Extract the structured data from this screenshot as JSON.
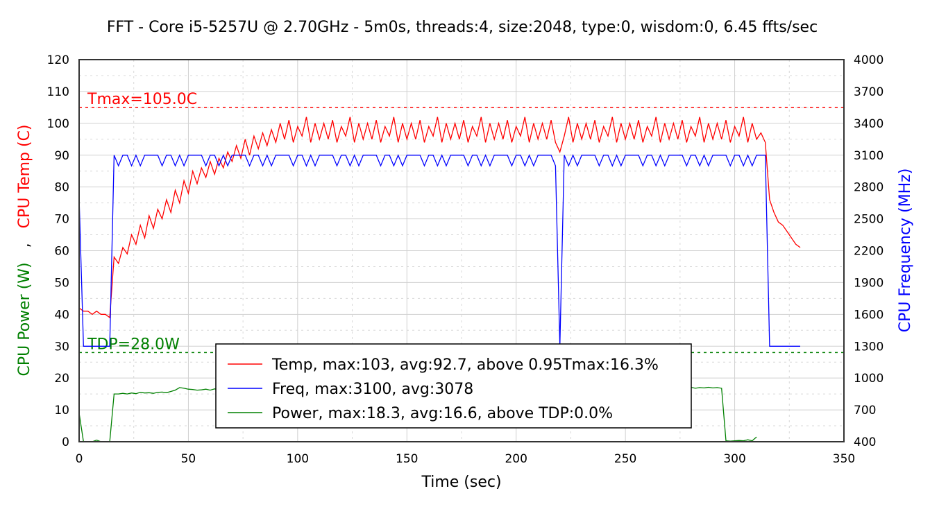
{
  "chart_data": {
    "type": "line",
    "title": "FFT - Core i5-5257U @ 2.70GHz - 5m0s, threads:4, size:2048, type:0, wisdom:0, 6.45 ffts/sec",
    "xlabel": "Time (sec)",
    "ylabel_left_parts": [
      "CPU Power (W)",
      ",",
      "CPU Temp (C)"
    ],
    "ylabel_right": "CPU Frequency (MHz)",
    "xlim": [
      0,
      350
    ],
    "ylim_left": [
      0,
      120
    ],
    "ylim_right": [
      400,
      4000
    ],
    "xticks": [
      0,
      50,
      100,
      150,
      200,
      250,
      300,
      350
    ],
    "yticks_left": [
      0,
      10,
      20,
      30,
      40,
      50,
      60,
      70,
      80,
      90,
      100,
      110,
      120
    ],
    "yticks_right": [
      400,
      700,
      1000,
      1300,
      1600,
      1900,
      2200,
      2500,
      2800,
      3100,
      3400,
      3700,
      4000
    ],
    "grid": true,
    "legend_position": "bottom-center",
    "annotations": [
      {
        "text": "Tmax=105.0C",
        "value": 105,
        "axis": "left",
        "color": "#ff0000"
      },
      {
        "text": "TDP=28.0W",
        "value": 28,
        "axis": "left",
        "color": "#008000"
      }
    ],
    "x_start": 0,
    "x_step": 2,
    "series": [
      {
        "name": "Temp",
        "legend": "Temp, max:103, avg:92.7, above 0.95Tmax:16.3%",
        "color": "#ff0000",
        "axis": "left",
        "values": [
          42,
          41,
          41,
          40,
          41,
          40,
          40,
          39,
          58,
          56,
          61,
          59,
          65,
          62,
          68,
          64,
          71,
          67,
          73,
          70,
          76,
          72,
          79,
          75,
          82,
          78,
          85,
          81,
          86,
          83,
          88,
          84,
          89,
          86,
          91,
          88,
          93,
          89,
          95,
          90,
          96,
          92,
          97,
          93,
          98,
          94,
          100,
          95,
          101,
          94,
          99,
          96,
          102,
          94,
          100,
          95,
          100,
          95,
          101,
          94,
          99,
          96,
          102,
          94,
          100,
          95,
          100,
          95,
          101,
          94,
          99,
          96,
          102,
          94,
          100,
          95,
          100,
          95,
          101,
          94,
          99,
          96,
          102,
          94,
          100,
          95,
          100,
          95,
          101,
          94,
          99,
          96,
          102,
          94,
          100,
          95,
          100,
          95,
          101,
          94,
          99,
          96,
          102,
          94,
          100,
          95,
          100,
          95,
          101,
          94,
          91,
          96,
          102,
          94,
          100,
          95,
          100,
          95,
          101,
          94,
          99,
          96,
          102,
          94,
          100,
          95,
          100,
          95,
          101,
          94,
          99,
          96,
          102,
          94,
          100,
          95,
          100,
          95,
          101,
          94,
          99,
          96,
          102,
          94,
          100,
          95,
          100,
          95,
          101,
          94,
          99,
          96,
          102,
          94,
          100,
          95,
          97,
          94,
          76,
          72,
          69,
          68,
          66,
          64,
          62,
          61
        ]
      },
      {
        "name": "Freq",
        "legend": "Freq, max:3100, avg:3078",
        "color": "#0000ff",
        "axis": "right",
        "values": [
          2700,
          1300,
          1300,
          1300,
          1300,
          1300,
          1300,
          1300,
          3100,
          3000,
          3100,
          3100,
          3000,
          3100,
          3000,
          3100,
          3100,
          3100,
          3100,
          3000,
          3100,
          3100,
          3000,
          3100,
          3000,
          3100,
          3100,
          3100,
          3100,
          3000,
          3100,
          3100,
          3000,
          3100,
          3000,
          3100,
          3100,
          3100,
          3100,
          3000,
          3100,
          3100,
          3000,
          3100,
          3000,
          3100,
          3100,
          3100,
          3100,
          3000,
          3100,
          3100,
          3000,
          3100,
          3000,
          3100,
          3100,
          3100,
          3100,
          3000,
          3100,
          3100,
          3000,
          3100,
          3000,
          3100,
          3100,
          3100,
          3100,
          3000,
          3100,
          3100,
          3000,
          3100,
          3000,
          3100,
          3100,
          3100,
          3100,
          3000,
          3100,
          3100,
          3000,
          3100,
          3000,
          3100,
          3100,
          3100,
          3100,
          3000,
          3100,
          3100,
          3000,
          3100,
          3000,
          3100,
          3100,
          3100,
          3100,
          3000,
          3100,
          3100,
          3000,
          3100,
          3000,
          3100,
          3100,
          3100,
          3100,
          3000,
          1300,
          3100,
          3000,
          3100,
          3000,
          3100,
          3100,
          3100,
          3100,
          3000,
          3100,
          3100,
          3000,
          3100,
          3000,
          3100,
          3100,
          3100,
          3100,
          3000,
          3100,
          3100,
          3000,
          3100,
          3000,
          3100,
          3100,
          3100,
          3100,
          3000,
          3100,
          3100,
          3000,
          3100,
          3000,
          3100,
          3100,
          3100,
          3100,
          3000,
          3100,
          3100,
          3000,
          3100,
          3000,
          3100,
          3100,
          3100,
          1300,
          1300,
          1300,
          1300,
          1300,
          1300,
          1300,
          1300
        ]
      },
      {
        "name": "Power",
        "legend": "Power, max:18.3, avg:16.6, above TDP:0.0%",
        "color": "#008000",
        "axis": "left",
        "values": [
          9,
          0,
          0,
          0,
          0.5,
          0,
          0,
          0,
          15,
          15,
          15.2,
          15,
          15.3,
          15.1,
          15.5,
          15.3,
          15.4,
          15.2,
          15.5,
          15.6,
          15.4,
          15.8,
          16.2,
          17,
          16.8,
          16.5,
          16.4,
          16.2,
          16.3,
          16.5,
          16.2,
          16.6,
          16.4,
          16.5,
          16.7,
          16.3,
          16.5,
          16.6,
          16.4,
          16.6,
          16.5,
          16.3,
          16.7,
          16.5,
          16.4,
          16.6,
          16.5,
          16.7,
          16.5,
          16.4,
          16.6,
          16.8,
          16.5,
          16.6,
          16.4,
          16.7,
          16.5,
          16.6,
          16.6,
          16.5,
          16.7,
          16.4,
          16.6,
          16.8,
          16.5,
          16.6,
          16.7,
          16.5,
          16.5,
          16.7,
          16.6,
          16.4,
          16.8,
          16.6,
          16.5,
          16.7,
          16.6,
          16.8,
          16.7,
          16.6,
          16.8,
          16.5,
          16.7,
          16.9,
          16.6,
          16.7,
          16.8,
          16.6,
          16.8,
          16.6,
          16.7,
          16.9,
          16.7,
          16.8,
          16.6,
          16.9,
          16.7,
          16.8,
          16.7,
          16.9,
          16.8,
          16.6,
          16.9,
          16.7,
          16.8,
          17,
          16.8,
          16.9,
          16.8,
          16.7,
          16.9,
          17,
          16.8,
          16.9,
          17.1,
          16.8,
          16.9,
          17,
          16.9,
          17.1,
          16.8,
          17,
          17.2,
          16.9,
          17,
          17.1,
          16.9,
          17.2,
          17,
          17.3,
          17.1,
          16.9,
          17.4,
          17.2,
          17.8,
          17.3,
          17.1,
          17,
          16.9,
          17,
          17.1,
          16.8,
          17,
          16.9,
          17.1,
          16.9,
          17,
          16.8,
          0.3,
          0.2,
          0.3,
          0.4,
          0.3,
          0.6,
          0.3,
          1.5
        ]
      }
    ]
  }
}
